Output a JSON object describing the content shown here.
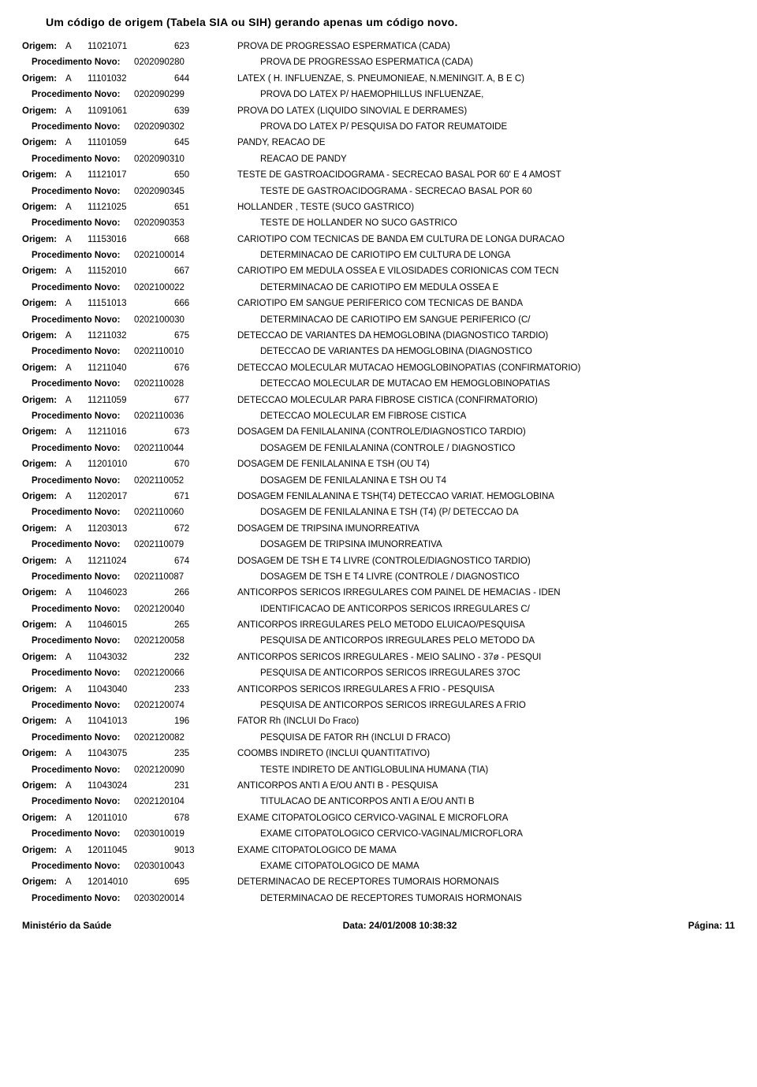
{
  "title": "Um código de origem (Tabela SIA ou SIH) gerando apenas um código novo.",
  "origem_label": "Origem:",
  "proc_label": "Procedimento Novo:",
  "rows": [
    {
      "o_type": "A",
      "o_code": "11021071",
      "o_seq": "623",
      "o_desc": "PROVA DE PROGRESSAO ESPERMATICA (CADA)",
      "p_code": "0202090280",
      "p_desc": "PROVA DE PROGRESSAO ESPERMATICA (CADA)"
    },
    {
      "o_type": "A",
      "o_code": "11101032",
      "o_seq": "644",
      "o_desc": "LATEX ( H. INFLUENZAE, S. PNEUMONIEAE, N.MENINGIT. A, B E C)",
      "p_code": "0202090299",
      "p_desc": "PROVA DO LATEX P/ HAEMOPHILLUS INFLUENZAE,"
    },
    {
      "o_type": "A",
      "o_code": "11091061",
      "o_seq": "639",
      "o_desc": "PROVA DO LATEX (LIQUIDO SINOVIAL E DERRAMES)",
      "p_code": "0202090302",
      "p_desc": "PROVA DO LATEX P/ PESQUISA DO FATOR REUMATOIDE"
    },
    {
      "o_type": "A",
      "o_code": "11101059",
      "o_seq": "645",
      "o_desc": "PANDY, REACAO DE",
      "p_code": "0202090310",
      "p_desc": "REACAO DE PANDY"
    },
    {
      "o_type": "A",
      "o_code": "11121017",
      "o_seq": "650",
      "o_desc": "TESTE DE GASTROACIDOGRAMA - SECRECAO BASAL POR 60' E 4 AMOST",
      "p_code": "0202090345",
      "p_desc": "TESTE DE GASTROACIDOGRAMA - SECRECAO BASAL POR 60"
    },
    {
      "o_type": "A",
      "o_code": "11121025",
      "o_seq": "651",
      "o_desc": "HOLLANDER , TESTE (SUCO GASTRICO)",
      "p_code": "0202090353",
      "p_desc": "TESTE DE HOLLANDER NO SUCO GASTRICO"
    },
    {
      "o_type": "A",
      "o_code": "11153016",
      "o_seq": "668",
      "o_desc": "CARIOTIPO COM TECNICAS DE BANDA EM CULTURA DE LONGA DURACAO",
      "p_code": "0202100014",
      "p_desc": "DETERMINACAO DE CARIOTIPO EM CULTURA DE LONGA"
    },
    {
      "o_type": "A",
      "o_code": "11152010",
      "o_seq": "667",
      "o_desc": "CARIOTIPO EM MEDULA OSSEA E VILOSIDADES CORIONICAS  COM TECN",
      "p_code": "0202100022",
      "p_desc": "DETERMINACAO DE CARIOTIPO EM MEDULA OSSEA E"
    },
    {
      "o_type": "A",
      "o_code": "11151013",
      "o_seq": "666",
      "o_desc": "CARIOTIPO EM SANGUE PERIFERICO COM TECNICAS DE BANDA",
      "p_code": "0202100030",
      "p_desc": "DETERMINACAO DE CARIOTIPO EM SANGUE PERIFERICO (C/"
    },
    {
      "o_type": "A",
      "o_code": "11211032",
      "o_seq": "675",
      "o_desc": "DETECCAO DE VARIANTES DA HEMOGLOBINA (DIAGNOSTICO TARDIO)",
      "p_code": "0202110010",
      "p_desc": "DETECCAO DE VARIANTES DA HEMOGLOBINA (DIAGNOSTICO"
    },
    {
      "o_type": "A",
      "o_code": "11211040",
      "o_seq": "676",
      "o_desc": "DETECCAO MOLECULAR MUTACAO HEMOGLOBINOPATIAS (CONFIRMATORIO)",
      "p_code": "0202110028",
      "p_desc": "DETECCAO MOLECULAR DE MUTACAO EM HEMOGLOBINOPATIAS"
    },
    {
      "o_type": "A",
      "o_code": "11211059",
      "o_seq": "677",
      "o_desc": "DETECCAO MOLECULAR PARA FIBROSE CISTICA (CONFIRMATORIO)",
      "p_code": "0202110036",
      "p_desc": "DETECCAO MOLECULAR EM FIBROSE CISTICA"
    },
    {
      "o_type": "A",
      "o_code": "11211016",
      "o_seq": "673",
      "o_desc": "DOSAGEM DA FENILALANINA (CONTROLE/DIAGNOSTICO TARDIO)",
      "p_code": "0202110044",
      "p_desc": "DOSAGEM DE FENILALANINA (CONTROLE / DIAGNOSTICO"
    },
    {
      "o_type": "A",
      "o_code": "11201010",
      "o_seq": "670",
      "o_desc": "DOSAGEM DE FENILALANINA E TSH (OU T4)",
      "p_code": "0202110052",
      "p_desc": "DOSAGEM DE FENILALANINA E TSH OU T4"
    },
    {
      "o_type": "A",
      "o_code": "11202017",
      "o_seq": "671",
      "o_desc": "DOSAGEM FENILALANINA E TSH(T4) DETECCAO VARIAT. HEMOGLOBINA",
      "p_code": "0202110060",
      "p_desc": "DOSAGEM DE FENILALANINA E TSH (T4) (P/ DETECCAO DA"
    },
    {
      "o_type": "A",
      "o_code": "11203013",
      "o_seq": "672",
      "o_desc": "DOSAGEM DE TRIPSINA IMUNORREATIVA",
      "p_code": "0202110079",
      "p_desc": "DOSAGEM DE TRIPSINA IMUNORREATIVA"
    },
    {
      "o_type": "A",
      "o_code": "11211024",
      "o_seq": "674",
      "o_desc": "DOSAGEM DE TSH E T4 LIVRE (CONTROLE/DIAGNOSTICO TARDIO)",
      "p_code": "0202110087",
      "p_desc": "DOSAGEM DE TSH E T4 LIVRE (CONTROLE / DIAGNOSTICO"
    },
    {
      "o_type": "A",
      "o_code": "11046023",
      "o_seq": "266",
      "o_desc": "ANTICORPOS SERICOS IRREGULARES COM PAINEL DE HEMACIAS - IDEN",
      "p_code": "0202120040",
      "p_desc": "IDENTIFICACAO DE ANTICORPOS SERICOS IRREGULARES C/"
    },
    {
      "o_type": "A",
      "o_code": "11046015",
      "o_seq": "265",
      "o_desc": "ANTICORPOS IRREGULARES PELO METODO ELUICAO/PESQUISA",
      "p_code": "0202120058",
      "p_desc": "PESQUISA DE ANTICORPOS IRREGULARES PELO METODO DA"
    },
    {
      "o_type": "A",
      "o_code": "11043032",
      "o_seq": "232",
      "o_desc": "ANTICORPOS SERICOS  IRREGULARES - MEIO SALINO - 37ø - PESQUI",
      "p_code": "0202120066",
      "p_desc": "PESQUISA DE ANTICORPOS SERICOS IRREGULARES 37OC"
    },
    {
      "o_type": "A",
      "o_code": "11043040",
      "o_seq": "233",
      "o_desc": "ANTICORPOS SERICOS IRREGULARES A FRIO - PESQUISA",
      "p_code": "0202120074",
      "p_desc": "PESQUISA DE ANTICORPOS SERICOS IRREGULARES A FRIO"
    },
    {
      "o_type": "A",
      "o_code": "11041013",
      "o_seq": "196",
      "o_desc": "FATOR Rh (INCLUI Do Fraco)",
      "p_code": "0202120082",
      "p_desc": "PESQUISA DE FATOR RH (INCLUI D FRACO)"
    },
    {
      "o_type": "A",
      "o_code": "11043075",
      "o_seq": "235",
      "o_desc": "COOMBS  INDIRETO (INCLUI QUANTITATIVO)",
      "p_code": "0202120090",
      "p_desc": "TESTE INDIRETO DE ANTIGLOBULINA HUMANA (TIA)"
    },
    {
      "o_type": "A",
      "o_code": "11043024",
      "o_seq": "231",
      "o_desc": "ANTICORPOS ANTI A E/OU ANTI B - PESQUISA",
      "p_code": "0202120104",
      "p_desc": "TITULACAO DE ANTICORPOS ANTI A E/OU ANTI B"
    },
    {
      "o_type": "A",
      "o_code": "12011010",
      "o_seq": "678",
      "o_desc": "EXAME CITOPATOLOGICO CERVICO-VAGINAL E MICROFLORA",
      "p_code": "0203010019",
      "p_desc": "EXAME CITOPATOLOGICO CERVICO-VAGINAL/MICROFLORA"
    },
    {
      "o_type": "A",
      "o_code": "12011045",
      "o_seq": "9013",
      "o_desc": "EXAME CITOPATOLOGICO DE MAMA",
      "p_code": "0203010043",
      "p_desc": "EXAME CITOPATOLOGICO DE MAMA"
    },
    {
      "o_type": "A",
      "o_code": "12014010",
      "o_seq": "695",
      "o_desc": "DETERMINACAO DE RECEPTORES TUMORAIS HORMONAIS",
      "p_code": "0203020014",
      "p_desc": "DETERMINACAO DE RECEPTORES TUMORAIS HORMONAIS"
    }
  ],
  "footer": {
    "left": "Ministério da Saúde",
    "center": "Data: 24/01/2008 10:38:32",
    "right": "Página: 11"
  }
}
